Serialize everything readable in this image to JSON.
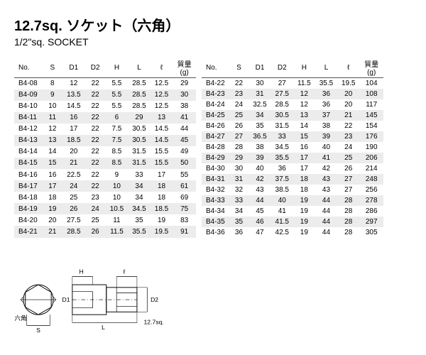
{
  "title_jp": "12.7sq. ソケット（六角）",
  "title_en": "1/2\"sq. SOCKET",
  "columns": [
    "No.",
    "S",
    "D1",
    "D2",
    "H",
    "L",
    "ℓ",
    "質量(g)"
  ],
  "left_rows": [
    [
      "B4-08",
      "8",
      "12",
      "22",
      "5.5",
      "28.5",
      "12.5",
      "29"
    ],
    [
      "B4-09",
      "9",
      "13.5",
      "22",
      "5.5",
      "28.5",
      "12.5",
      "30"
    ],
    [
      "B4-10",
      "10",
      "14.5",
      "22",
      "5.5",
      "28.5",
      "12.5",
      "38"
    ],
    [
      "B4-11",
      "11",
      "16",
      "22",
      "6",
      "29",
      "13",
      "41"
    ],
    [
      "B4-12",
      "12",
      "17",
      "22",
      "7.5",
      "30.5",
      "14.5",
      "44"
    ],
    [
      "B4-13",
      "13",
      "18.5",
      "22",
      "7.5",
      "30.5",
      "14.5",
      "45"
    ],
    [
      "B4-14",
      "14",
      "20",
      "22",
      "8.5",
      "31.5",
      "15.5",
      "49"
    ],
    [
      "B4-15",
      "15",
      "21",
      "22",
      "8.5",
      "31.5",
      "15.5",
      "50"
    ],
    [
      "B4-16",
      "16",
      "22.5",
      "22",
      "9",
      "33",
      "17",
      "55"
    ],
    [
      "B4-17",
      "17",
      "24",
      "22",
      "10",
      "34",
      "18",
      "61"
    ],
    [
      "B4-18",
      "18",
      "25",
      "23",
      "10",
      "34",
      "18",
      "69"
    ],
    [
      "B4-19",
      "19",
      "26",
      "24",
      "10.5",
      "34.5",
      "18.5",
      "75"
    ],
    [
      "B4-20",
      "20",
      "27.5",
      "25",
      "11",
      "35",
      "19",
      "83"
    ],
    [
      "B4-21",
      "21",
      "28.5",
      "26",
      "11.5",
      "35.5",
      "19.5",
      "91"
    ]
  ],
  "right_rows": [
    [
      "B4-22",
      "22",
      "30",
      "27",
      "11.5",
      "35.5",
      "19.5",
      "104"
    ],
    [
      "B4-23",
      "23",
      "31",
      "27.5",
      "12",
      "36",
      "20",
      "108"
    ],
    [
      "B4-24",
      "24",
      "32.5",
      "28.5",
      "12",
      "36",
      "20",
      "117"
    ],
    [
      "B4-25",
      "25",
      "34",
      "30.5",
      "13",
      "37",
      "21",
      "145"
    ],
    [
      "B4-26",
      "26",
      "35",
      "31.5",
      "14",
      "38",
      "22",
      "154"
    ],
    [
      "B4-27",
      "27",
      "36.5",
      "33",
      "15",
      "39",
      "23",
      "176"
    ],
    [
      "B4-28",
      "28",
      "38",
      "34.5",
      "16",
      "40",
      "24",
      "190"
    ],
    [
      "B4-29",
      "29",
      "39",
      "35.5",
      "17",
      "41",
      "25",
      "206"
    ],
    [
      "B4-30",
      "30",
      "40",
      "36",
      "17",
      "42",
      "26",
      "214"
    ],
    [
      "B4-31",
      "31",
      "42",
      "37.5",
      "18",
      "43",
      "27",
      "248"
    ],
    [
      "B4-32",
      "32",
      "43",
      "38.5",
      "18",
      "43",
      "27",
      "256"
    ],
    [
      "B4-33",
      "33",
      "44",
      "40",
      "19",
      "44",
      "28",
      "278"
    ],
    [
      "B4-34",
      "34",
      "45",
      "41",
      "19",
      "44",
      "28",
      "286"
    ],
    [
      "B4-35",
      "35",
      "46",
      "41.5",
      "19",
      "44",
      "28",
      "297"
    ],
    [
      "B4-36",
      "36",
      "47",
      "42.5",
      "19",
      "44",
      "28",
      "305"
    ]
  ],
  "diagram_labels": {
    "H": "H",
    "l": "ℓ",
    "D1": "D1",
    "D2": "D2",
    "hex": "六角",
    "S": "S",
    "L": "L",
    "sq": "12.7sq."
  }
}
